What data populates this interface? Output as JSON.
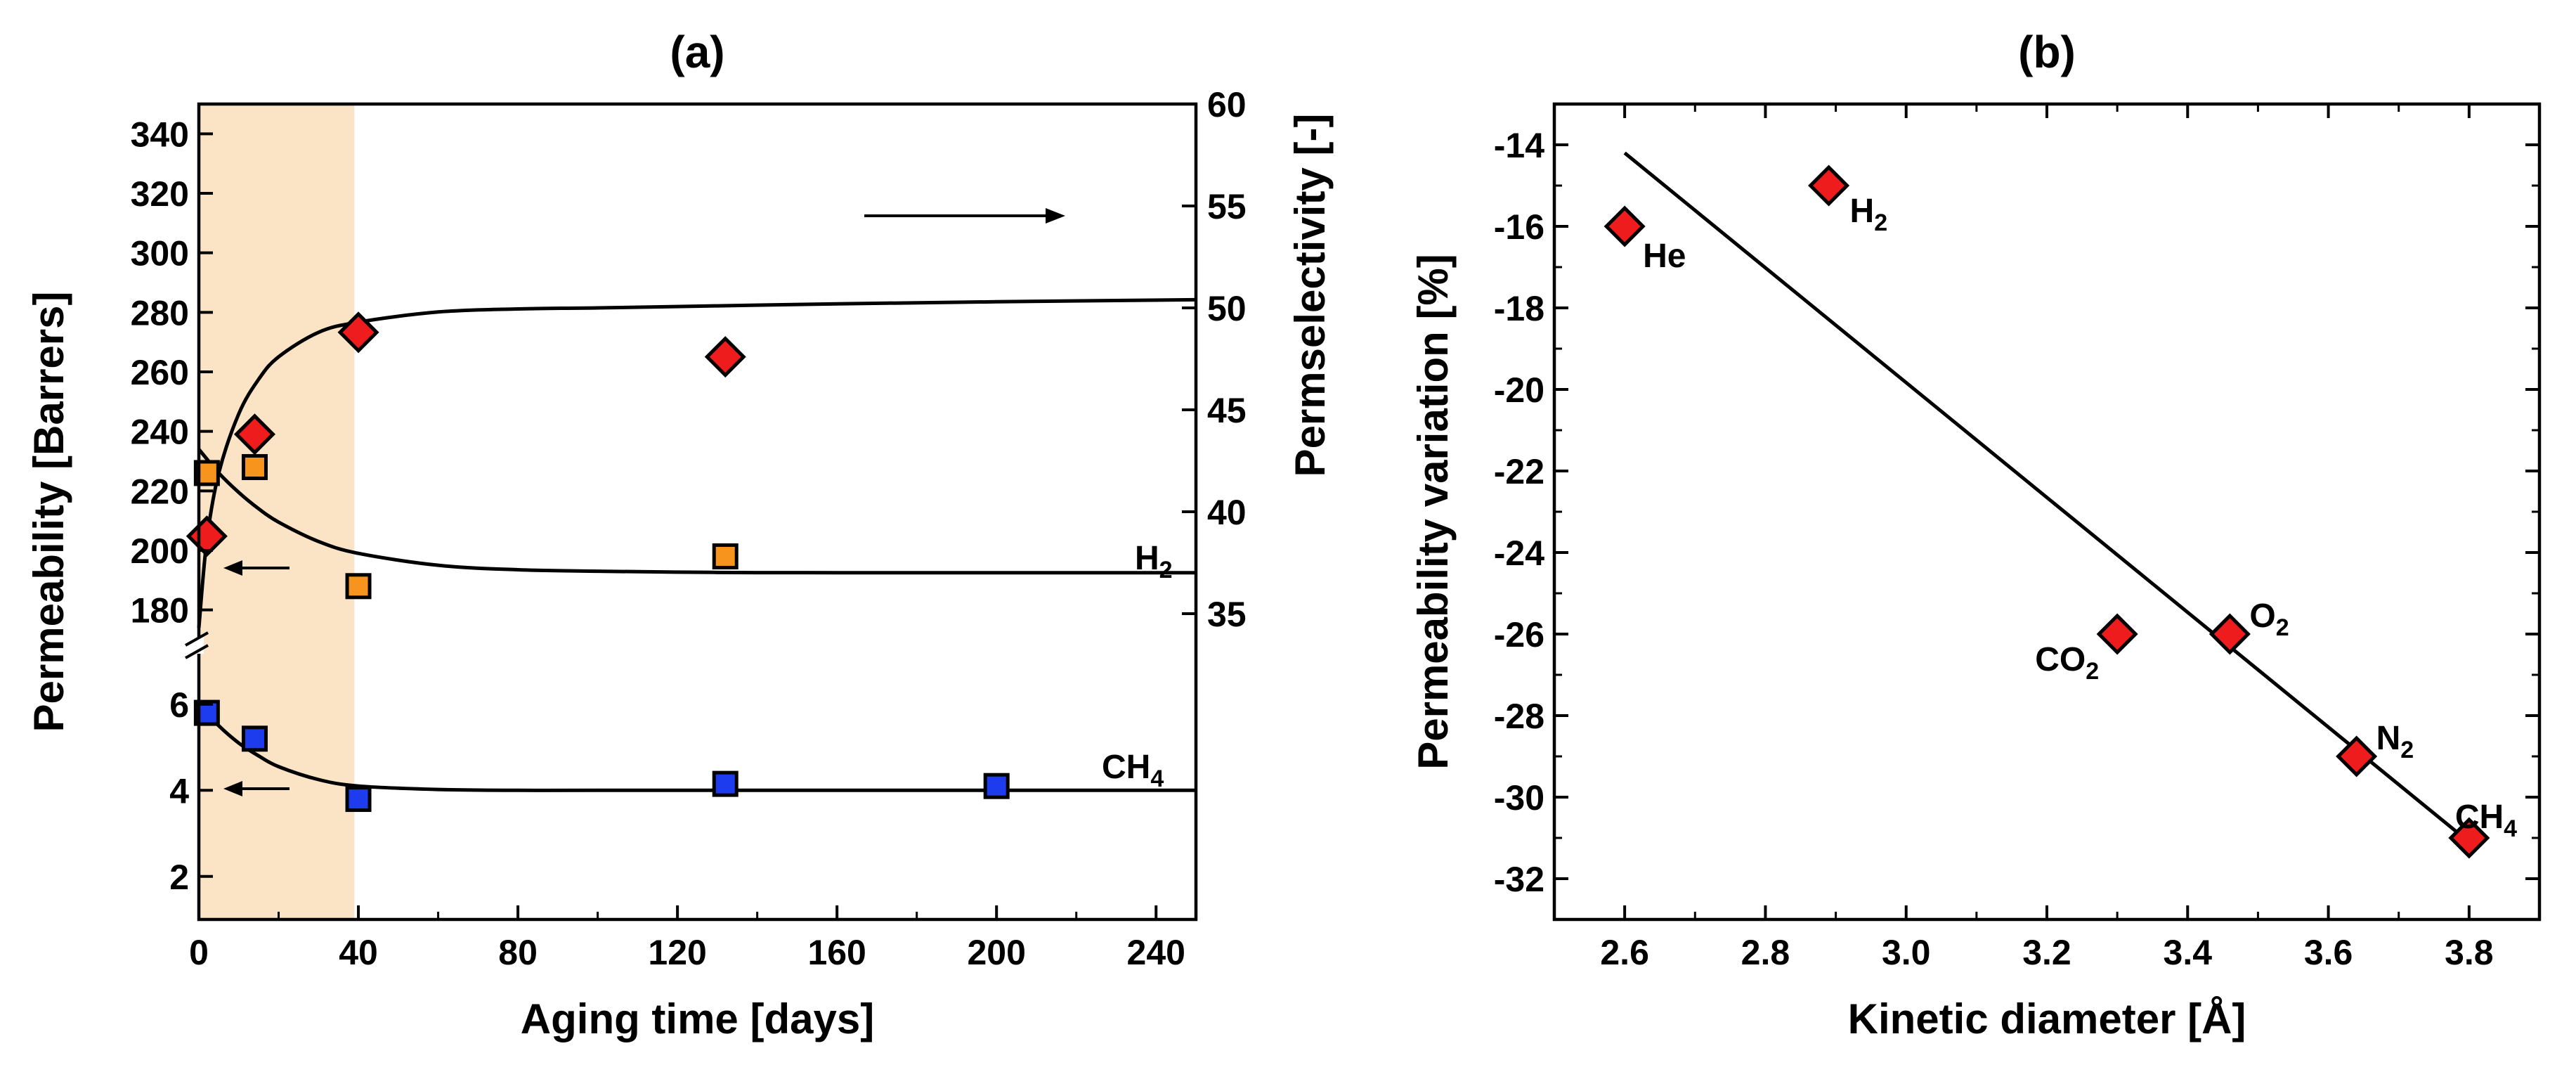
{
  "chart_data": [
    {
      "id": "a",
      "type": "scatter",
      "title": "(a)",
      "xlabel": "Aging time [days]",
      "ylabel": "Permeability [Barrers]",
      "ylabel_right": "Permselectivity [-]",
      "xlim": [
        0,
        250
      ],
      "xticks": [
        0,
        40,
        80,
        120,
        160,
        200,
        240
      ],
      "upper_ylim": [
        170,
        350
      ],
      "upper_yticks": [
        180,
        200,
        220,
        240,
        260,
        280,
        300,
        320,
        340
      ],
      "lower_ylim": [
        1,
        7.5
      ],
      "lower_yticks": [
        2,
        4,
        6
      ],
      "right_ylim": [
        20,
        60
      ],
      "right_yticks": [
        35,
        40,
        45,
        50,
        55,
        60
      ],
      "shaded_region": [
        0,
        39
      ],
      "shaded_color": "#fbe3c5",
      "series": [
        {
          "name": "Permselectivity",
          "marker": "diamond",
          "color": "#ee1c1c",
          "axis": "right",
          "x": [
            2,
            14,
            40,
            132
          ],
          "y": [
            38.8,
            43.8,
            48.8,
            47.6
          ],
          "fit_x": [
            0,
            2,
            5,
            10,
            15,
            20,
            30,
            40,
            60,
            80,
            100,
            130,
            160,
            200,
            250
          ],
          "fit_y": [
            34.3,
            38.6,
            41.9,
            44.8,
            46.5,
            47.6,
            48.8,
            49.3,
            49.8,
            49.95,
            50.0,
            50.1,
            50.2,
            50.3,
            50.4
          ]
        },
        {
          "name": "H2",
          "label": "H",
          "label_sub": "2",
          "marker": "square",
          "color": "#f7941d",
          "axis": "upper",
          "x": [
            2,
            14,
            40,
            132
          ],
          "y": [
            226,
            228,
            188,
            198
          ],
          "fit_x": [
            0,
            5,
            10,
            15,
            20,
            30,
            40,
            60,
            80,
            100,
            130,
            160,
            200,
            250
          ],
          "fit_y": [
            234,
            226,
            219.5,
            214,
            209.5,
            203,
            199,
            195,
            193.5,
            193,
            192.6,
            192.5,
            192.5,
            192.5
          ]
        },
        {
          "name": "CH4",
          "label": "CH",
          "label_sub": "4",
          "marker": "square",
          "color": "#1c3cee",
          "axis": "lower",
          "x": [
            2,
            14,
            40,
            132,
            200
          ],
          "y": [
            5.8,
            5.2,
            3.8,
            4.15,
            4.1
          ],
          "fit_x": [
            0,
            5,
            10,
            15,
            20,
            30,
            40,
            60,
            80,
            100,
            130,
            160,
            200,
            250
          ],
          "fit_y": [
            6.0,
            5.5,
            5.1,
            4.8,
            4.55,
            4.25,
            4.1,
            4.02,
            4.0,
            4.0,
            4.0,
            4.0,
            4.0,
            4.0
          ]
        }
      ]
    },
    {
      "id": "b",
      "type": "scatter",
      "title": "(b)",
      "xlabel": "Kinetic diameter [Å]",
      "ylabel": "Permeability variation [%]",
      "xlim": [
        2.5,
        3.9
      ],
      "ylim": [
        -33,
        -13
      ],
      "xticks": [
        "2.6",
        "2.8",
        "3.0",
        "3.2",
        "3.4",
        "3.6",
        "3.8"
      ],
      "yticks": [
        "-14",
        "-16",
        "-18",
        "-20",
        "-22",
        "-24",
        "-26",
        "-28",
        "-30",
        "-32"
      ],
      "marker_color": "#ee1c1c",
      "points": [
        {
          "gas": "He",
          "sub": "",
          "x": 2.6,
          "y": -16
        },
        {
          "gas": "H",
          "sub": "2",
          "x": 2.89,
          "y": -15
        },
        {
          "gas": "CO",
          "sub": "2",
          "x": 3.3,
          "y": -26
        },
        {
          "gas": "O",
          "sub": "2",
          "x": 3.46,
          "y": -26
        },
        {
          "gas": "N",
          "sub": "2",
          "x": 3.64,
          "y": -29
        },
        {
          "gas": "CH",
          "sub": "4",
          "x": 3.8,
          "y": -31
        }
      ],
      "fit_line": {
        "x": [
          2.6,
          3.8
        ],
        "y": [
          -14.2,
          -31.1
        ]
      }
    }
  ]
}
